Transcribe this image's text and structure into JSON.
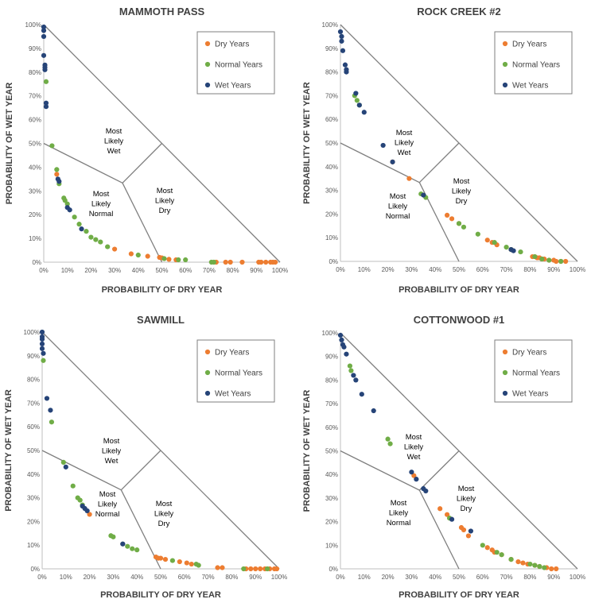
{
  "colors": {
    "dry": "#ED7D31",
    "normal": "#70AD47",
    "wet": "#264478",
    "line": "#7F7F7F"
  },
  "chart_data": [
    {
      "type": "scatter",
      "title": "MAMMOTH PASS",
      "xlabel": "PROBABILITY OF DRY YEAR",
      "ylabel": "PROBABILITY OF WET YEAR",
      "xlim": [
        0,
        1
      ],
      "ylim": [
        0,
        1
      ],
      "x_ticks": [
        "0%",
        "10%",
        "20%",
        "30%",
        "40%",
        "50%",
        "60%",
        "70%",
        "80%",
        "90%",
        "100%"
      ],
      "y_ticks": [
        "0%",
        "10%",
        "20%",
        "30%",
        "40%",
        "50%",
        "60%",
        "70%",
        "80%",
        "90%",
        "100%"
      ],
      "legend": [
        "Dry Years",
        "Normal Years",
        "Wet Years"
      ],
      "regions": [
        [
          "Most",
          "Likely",
          "Wet"
        ],
        [
          "Most",
          "Likely",
          "Normal"
        ],
        [
          "Most",
          "Likely",
          "Dry"
        ]
      ],
      "series": [
        {
          "name": "Dry Years",
          "points": [
            [
              0.055,
              0.37
            ],
            [
              0.3,
              0.055
            ],
            [
              0.37,
              0.035
            ],
            [
              0.44,
              0.025
            ],
            [
              0.49,
              0.02
            ],
            [
              0.5,
              0.018
            ],
            [
              0.53,
              0.012
            ],
            [
              0.56,
              0.01
            ],
            [
              0.73,
              0.0
            ],
            [
              0.77,
              0.0
            ],
            [
              0.79,
              0.0
            ],
            [
              0.84,
              0.0
            ],
            [
              0.91,
              0.0
            ],
            [
              0.92,
              0.0
            ],
            [
              0.94,
              0.0
            ],
            [
              0.96,
              0.0
            ],
            [
              0.97,
              0.0
            ],
            [
              0.98,
              0.0
            ]
          ]
        },
        {
          "name": "Normal Years",
          "points": [
            [
              0.01,
              0.76
            ],
            [
              0.035,
              0.49
            ],
            [
              0.055,
              0.39
            ],
            [
              0.065,
              0.33
            ],
            [
              0.085,
              0.27
            ],
            [
              0.09,
              0.26
            ],
            [
              0.1,
              0.245
            ],
            [
              0.13,
              0.19
            ],
            [
              0.15,
              0.16
            ],
            [
              0.18,
              0.13
            ],
            [
              0.2,
              0.105
            ],
            [
              0.22,
              0.095
            ],
            [
              0.24,
              0.085
            ],
            [
              0.27,
              0.065
            ],
            [
              0.4,
              0.03
            ],
            [
              0.51,
              0.015
            ],
            [
              0.57,
              0.01
            ],
            [
              0.6,
              0.01
            ],
            [
              0.71,
              0.0
            ],
            [
              0.72,
              0.0
            ]
          ]
        },
        {
          "name": "Wet Years",
          "points": [
            [
              0.0,
              0.99
            ],
            [
              0.0,
              0.975
            ],
            [
              0.0,
              0.95
            ],
            [
              0.0,
              0.87
            ],
            [
              0.005,
              0.83
            ],
            [
              0.005,
              0.82
            ],
            [
              0.005,
              0.81
            ],
            [
              0.01,
              0.67
            ],
            [
              0.01,
              0.655
            ],
            [
              0.06,
              0.35
            ],
            [
              0.065,
              0.34
            ],
            [
              0.1,
              0.23
            ],
            [
              0.11,
              0.22
            ],
            [
              0.16,
              0.14
            ]
          ]
        }
      ]
    },
    {
      "type": "scatter",
      "title": "ROCK CREEK #2",
      "xlabel": "PROBABILITY OF DRY YEAR",
      "ylabel": "PROBABILITY OF WET YEAR",
      "xlim": [
        0,
        1
      ],
      "ylim": [
        0,
        1
      ],
      "x_ticks": [
        "0%",
        "10%",
        "20%",
        "30%",
        "40%",
        "50%",
        "60%",
        "70%",
        "80%",
        "90%",
        "100%"
      ],
      "y_ticks": [
        "0%",
        "10%",
        "20%",
        "30%",
        "40%",
        "50%",
        "60%",
        "70%",
        "80%",
        "90%",
        "100%"
      ],
      "legend": [
        "Dry Years",
        "Normal Years",
        "Wet Years"
      ],
      "regions": [
        [
          "Most",
          "Likely",
          "Wet"
        ],
        [
          "Most",
          "Likely",
          "Normal"
        ],
        [
          "Most",
          "Likely",
          "Dry"
        ]
      ],
      "series": [
        {
          "name": "Dry Years",
          "points": [
            [
              0.22,
              0.42
            ],
            [
              0.29,
              0.35
            ],
            [
              0.45,
              0.195
            ],
            [
              0.47,
              0.18
            ],
            [
              0.5,
              0.16
            ],
            [
              0.62,
              0.09
            ],
            [
              0.64,
              0.08
            ],
            [
              0.66,
              0.07
            ],
            [
              0.72,
              0.05
            ],
            [
              0.81,
              0.02
            ],
            [
              0.82,
              0.02
            ],
            [
              0.83,
              0.015
            ],
            [
              0.84,
              0.015
            ],
            [
              0.85,
              0.01
            ],
            [
              0.86,
              0.01
            ],
            [
              0.88,
              0.005
            ],
            [
              0.9,
              0.005
            ],
            [
              0.91,
              0.0
            ],
            [
              0.93,
              0.0
            ],
            [
              0.95,
              0.0
            ]
          ]
        },
        {
          "name": "Normal Years",
          "points": [
            [
              0.06,
              0.7
            ],
            [
              0.07,
              0.68
            ],
            [
              0.08,
              0.66
            ],
            [
              0.34,
              0.285
            ],
            [
              0.36,
              0.27
            ],
            [
              0.5,
              0.16
            ],
            [
              0.52,
              0.145
            ],
            [
              0.58,
              0.115
            ],
            [
              0.65,
              0.08
            ],
            [
              0.7,
              0.06
            ],
            [
              0.72,
              0.05
            ],
            [
              0.76,
              0.04
            ],
            [
              0.82,
              0.02
            ],
            [
              0.85,
              0.01
            ],
            [
              0.88,
              0.005
            ],
            [
              0.93,
              0.0
            ]
          ]
        },
        {
          "name": "Wet Years",
          "points": [
            [
              0.0,
              0.97
            ],
            [
              0.005,
              0.95
            ],
            [
              0.005,
              0.93
            ],
            [
              0.01,
              0.89
            ],
            [
              0.02,
              0.83
            ],
            [
              0.025,
              0.81
            ],
            [
              0.025,
              0.8
            ],
            [
              0.065,
              0.71
            ],
            [
              0.08,
              0.66
            ],
            [
              0.1,
              0.63
            ],
            [
              0.18,
              0.49
            ],
            [
              0.22,
              0.42
            ],
            [
              0.35,
              0.28
            ],
            [
              0.72,
              0.05
            ],
            [
              0.73,
              0.045
            ]
          ]
        }
      ]
    },
    {
      "type": "scatter",
      "title": "SAWMILL",
      "xlabel": "PROBABILITY OF DRY YEAR",
      "ylabel": "PROBABILITY OF WET YEAR",
      "xlim": [
        0,
        1
      ],
      "ylim": [
        0,
        1
      ],
      "x_ticks": [
        "0%",
        "10%",
        "20%",
        "30%",
        "40%",
        "50%",
        "60%",
        "70%",
        "80%",
        "90%",
        "100%"
      ],
      "y_ticks": [
        "0%",
        "10%",
        "20%",
        "30%",
        "40%",
        "50%",
        "60%",
        "70%",
        "80%",
        "90%",
        "100%"
      ],
      "legend": [
        "Dry Years",
        "Normal Years",
        "Wet Years"
      ],
      "regions": [
        [
          "Most",
          "Likely",
          "Wet"
        ],
        [
          "Most",
          "Likely",
          "Normal"
        ],
        [
          "Most",
          "Likely",
          "Dry"
        ]
      ],
      "series": [
        {
          "name": "Dry Years",
          "points": [
            [
              0.2,
              0.23
            ],
            [
              0.48,
              0.05
            ],
            [
              0.49,
              0.045
            ],
            [
              0.5,
              0.045
            ],
            [
              0.52,
              0.04
            ],
            [
              0.58,
              0.03
            ],
            [
              0.61,
              0.025
            ],
            [
              0.63,
              0.02
            ],
            [
              0.74,
              0.005
            ],
            [
              0.76,
              0.005
            ],
            [
              0.86,
              0.0
            ],
            [
              0.88,
              0.0
            ],
            [
              0.9,
              0.0
            ],
            [
              0.92,
              0.0
            ],
            [
              0.94,
              0.0
            ],
            [
              0.96,
              0.0
            ],
            [
              0.98,
              0.0
            ],
            [
              0.99,
              0.0
            ]
          ]
        },
        {
          "name": "Normal Years",
          "points": [
            [
              0.005,
              0.88
            ],
            [
              0.04,
              0.62
            ],
            [
              0.09,
              0.45
            ],
            [
              0.13,
              0.35
            ],
            [
              0.15,
              0.3
            ],
            [
              0.16,
              0.29
            ],
            [
              0.17,
              0.27
            ],
            [
              0.29,
              0.14
            ],
            [
              0.3,
              0.135
            ],
            [
              0.34,
              0.105
            ],
            [
              0.36,
              0.095
            ],
            [
              0.38,
              0.085
            ],
            [
              0.4,
              0.08
            ],
            [
              0.55,
              0.035
            ],
            [
              0.65,
              0.02
            ],
            [
              0.66,
              0.015
            ],
            [
              0.85,
              0.0
            ],
            [
              0.95,
              0.0
            ]
          ]
        },
        {
          "name": "Wet Years",
          "points": [
            [
              0.0,
              1.0
            ],
            [
              0.0,
              0.98
            ],
            [
              0.0,
              0.97
            ],
            [
              0.0,
              0.95
            ],
            [
              0.0,
              0.93
            ],
            [
              0.005,
              0.91
            ],
            [
              0.02,
              0.72
            ],
            [
              0.035,
              0.67
            ],
            [
              0.1,
              0.43
            ],
            [
              0.17,
              0.265
            ],
            [
              0.18,
              0.255
            ],
            [
              0.19,
              0.245
            ],
            [
              0.34,
              0.105
            ]
          ]
        }
      ]
    },
    {
      "type": "scatter",
      "title": "COTTONWOOD #1",
      "xlabel": "PROBABILITY OF DRY YEAR",
      "ylabel": "PROBABILITY OF WET YEAR",
      "xlim": [
        0,
        1
      ],
      "ylim": [
        0,
        1
      ],
      "x_ticks": [
        "0%",
        "10%",
        "20%",
        "30%",
        "40%",
        "50%",
        "60%",
        "70%",
        "80%",
        "90%",
        "100%"
      ],
      "y_ticks": [
        "0%",
        "10%",
        "20%",
        "30%",
        "40%",
        "50%",
        "60%",
        "70%",
        "80%",
        "90%",
        "100%"
      ],
      "legend": [
        "Dry Years",
        "Normal Years",
        "Wet Years"
      ],
      "regions": [
        [
          "Most",
          "Likely",
          "Wet"
        ],
        [
          "Most",
          "Likely",
          "Normal"
        ],
        [
          "Most",
          "Likely",
          "Dry"
        ]
      ],
      "series": [
        {
          "name": "Dry Years",
          "points": [
            [
              0.31,
              0.395
            ],
            [
              0.42,
              0.255
            ],
            [
              0.45,
              0.23
            ],
            [
              0.51,
              0.175
            ],
            [
              0.52,
              0.165
            ],
            [
              0.54,
              0.14
            ],
            [
              0.62,
              0.09
            ],
            [
              0.64,
              0.08
            ],
            [
              0.65,
              0.07
            ],
            [
              0.68,
              0.06
            ],
            [
              0.72,
              0.04
            ],
            [
              0.75,
              0.03
            ],
            [
              0.77,
              0.025
            ],
            [
              0.79,
              0.02
            ],
            [
              0.82,
              0.015
            ],
            [
              0.84,
              0.01
            ],
            [
              0.87,
              0.005
            ],
            [
              0.89,
              0.0
            ],
            [
              0.91,
              0.0
            ]
          ]
        },
        {
          "name": "Normal Years",
          "points": [
            [
              0.04,
              0.86
            ],
            [
              0.045,
              0.84
            ],
            [
              0.2,
              0.55
            ],
            [
              0.21,
              0.53
            ],
            [
              0.46,
              0.215
            ],
            [
              0.6,
              0.1
            ],
            [
              0.66,
              0.07
            ],
            [
              0.68,
              0.06
            ],
            [
              0.72,
              0.04
            ],
            [
              0.8,
              0.02
            ],
            [
              0.82,
              0.015
            ],
            [
              0.84,
              0.01
            ],
            [
              0.86,
              0.005
            ]
          ]
        },
        {
          "name": "Wet Years",
          "points": [
            [
              0.0,
              0.99
            ],
            [
              0.005,
              0.97
            ],
            [
              0.01,
              0.95
            ],
            [
              0.015,
              0.94
            ],
            [
              0.025,
              0.91
            ],
            [
              0.055,
              0.82
            ],
            [
              0.065,
              0.8
            ],
            [
              0.09,
              0.74
            ],
            [
              0.14,
              0.67
            ],
            [
              0.3,
              0.41
            ],
            [
              0.32,
              0.38
            ],
            [
              0.35,
              0.34
            ],
            [
              0.36,
              0.33
            ],
            [
              0.47,
              0.21
            ],
            [
              0.55,
              0.16
            ]
          ]
        }
      ]
    }
  ]
}
